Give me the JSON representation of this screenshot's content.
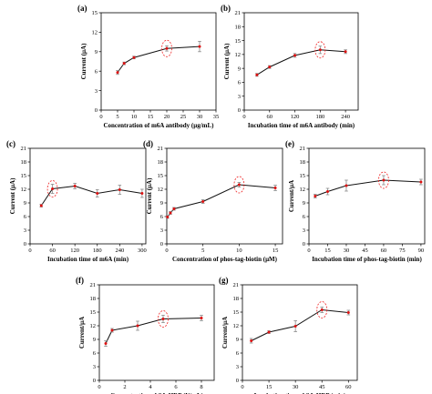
{
  "colors": {
    "line": "#111111",
    "marker": "#dd1111",
    "errorbar": "#888888",
    "highlight": "#ee2222"
  },
  "chart_data": [
    {
      "type": "line",
      "label": "(a)",
      "xlabel": "Concentration of m6A antibody (μg/mL)",
      "ylabel": "Current (μA)",
      "xlim": [
        0,
        35
      ],
      "ylim": [
        0,
        15
      ],
      "xticks": [
        0,
        5,
        10,
        15,
        20,
        25,
        30,
        35
      ],
      "yticks": [
        0,
        3,
        6,
        9,
        12,
        15
      ],
      "x": [
        5,
        7,
        10,
        20,
        30
      ],
      "y": [
        5.8,
        7.2,
        8.1,
        9.5,
        9.8
      ],
      "err": [
        0.3,
        0.2,
        0.2,
        0.4,
        0.8
      ],
      "highlight_index": 3
    },
    {
      "type": "line",
      "label": "(b)",
      "xlabel": "Incubation time of m6A antibody (min)",
      "ylabel": "Current (μA)",
      "xlim": [
        0,
        270
      ],
      "ylim": [
        0,
        21
      ],
      "xticks": [
        0,
        60,
        120,
        180,
        240
      ],
      "yticks": [
        0,
        3,
        6,
        9,
        12,
        15,
        18,
        21
      ],
      "x": [
        30,
        60,
        120,
        180,
        240
      ],
      "y": [
        7.6,
        9.3,
        11.8,
        13.0,
        12.6
      ],
      "err": [
        0.3,
        0.3,
        0.4,
        0.8,
        0.4
      ],
      "highlight_index": 3
    },
    {
      "type": "line",
      "label": "(c)",
      "xlabel": "Incubation time of m6A (min)",
      "ylabel": "Current (μA)",
      "xlim": [
        0,
        310
      ],
      "ylim": [
        0,
        21
      ],
      "xticks": [
        0,
        60,
        120,
        180,
        240,
        300
      ],
      "yticks": [
        0,
        3,
        6,
        9,
        12,
        15,
        18,
        21
      ],
      "x": [
        30,
        60,
        120,
        180,
        240,
        300
      ],
      "y": [
        8.4,
        12.1,
        12.7,
        11.1,
        11.9,
        11.1
      ],
      "err": [
        0.3,
        1.0,
        0.6,
        0.8,
        1.0,
        0.9
      ],
      "highlight_index": 1
    },
    {
      "type": "line",
      "label": "(d)",
      "xlabel": "Concentration of  phos-tag-biotin (μM)",
      "ylabel": "Current (μA)",
      "xlim": [
        0,
        16
      ],
      "ylim": [
        0,
        21
      ],
      "xticks": [
        0,
        5,
        10,
        15
      ],
      "yticks": [
        0,
        3,
        6,
        9,
        12,
        15,
        18,
        21
      ],
      "x": [
        0.1,
        0.5,
        1,
        5,
        10,
        15
      ],
      "y": [
        5.9,
        6.8,
        7.7,
        9.3,
        13.0,
        12.3
      ],
      "err": [
        0.3,
        0.3,
        0.3,
        0.4,
        0.5,
        0.6
      ],
      "highlight_index": 4
    },
    {
      "type": "line",
      "label": "(e)",
      "xlabel": "Incubation time of phos-tag-biotin (min)",
      "ylabel": "Current/μA",
      "xlim": [
        0,
        93
      ],
      "ylim": [
        0,
        21
      ],
      "xticks": [
        0,
        15,
        30,
        45,
        60,
        75,
        90
      ],
      "yticks": [
        0,
        3,
        6,
        9,
        12,
        15,
        18,
        21
      ],
      "x": [
        5,
        15,
        30,
        60,
        90
      ],
      "y": [
        10.5,
        11.5,
        12.8,
        14.0,
        13.6
      ],
      "err": [
        0.4,
        0.7,
        1.2,
        1.0,
        0.6
      ],
      "highlight_index": 3
    },
    {
      "type": "line",
      "label": "(f)",
      "xlabel": "Concentration of SA-HRP (U/mL)",
      "ylabel": "Current/μA",
      "xlim": [
        0,
        9
      ],
      "ylim": [
        0,
        21
      ],
      "xticks": [
        0,
        2,
        4,
        6,
        8
      ],
      "yticks": [
        0,
        3,
        6,
        9,
        12,
        15,
        18,
        21
      ],
      "x": [
        0.5,
        1,
        3,
        5,
        8
      ],
      "y": [
        8.1,
        11.0,
        12.0,
        13.5,
        13.7
      ],
      "err": [
        0.6,
        0.4,
        1.0,
        0.8,
        0.6
      ],
      "highlight_index": 3
    },
    {
      "type": "line",
      "label": "(g)",
      "xlabel": "Incubation time of SA-HRP (min)",
      "ylabel": "Current/μA",
      "xlim": [
        0,
        65
      ],
      "ylim": [
        0,
        21
      ],
      "xticks": [
        0,
        15,
        30,
        45,
        60
      ],
      "yticks": [
        0,
        3,
        6,
        9,
        12,
        15,
        18,
        21
      ],
      "x": [
        5,
        15,
        30,
        45,
        60
      ],
      "y": [
        8.7,
        10.6,
        11.9,
        15.5,
        14.9
      ],
      "err": [
        0.5,
        0.3,
        1.2,
        0.6,
        0.5
      ],
      "highlight_index": 3
    }
  ]
}
